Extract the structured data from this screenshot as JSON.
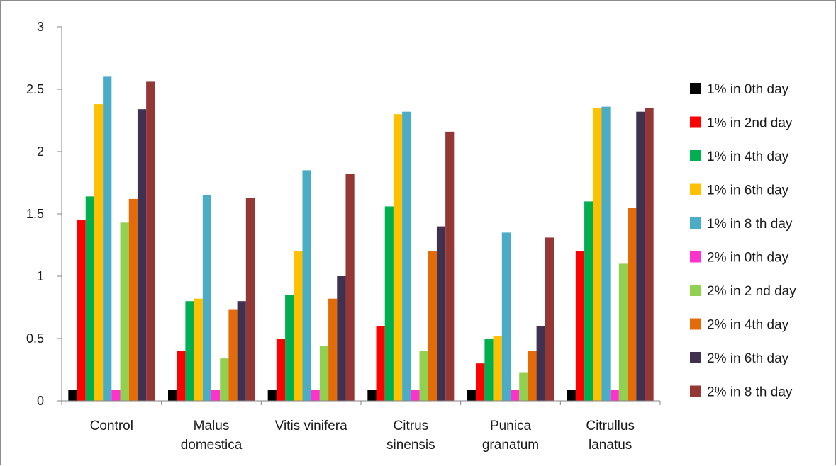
{
  "chart_data": {
    "type": "bar",
    "title": "",
    "xlabel": "",
    "ylabel": "",
    "ylim": [
      0,
      3
    ],
    "yticks": [
      "0",
      "0.5",
      "1",
      "1.5",
      "2",
      "2.5",
      "3"
    ],
    "grid": false,
    "legend_position": "right",
    "categories": [
      [
        "Control"
      ],
      [
        "Malus",
        "domestica"
      ],
      [
        "Vitis vinifera"
      ],
      [
        "Citrus",
        "sinensis"
      ],
      [
        "Punica",
        "granatum"
      ],
      [
        "Citrullus",
        "lanatus"
      ]
    ],
    "series": [
      {
        "name": "1% in 0th day",
        "color": "#000000",
        "values": [
          0.09,
          0.09,
          0.09,
          0.09,
          0.09,
          0.09
        ]
      },
      {
        "name": "1% in 2nd day",
        "color": "#ff0000",
        "values": [
          1.45,
          0.4,
          0.5,
          0.6,
          0.3,
          1.2
        ]
      },
      {
        "name": "1% in 4th day",
        "color": "#00b050",
        "values": [
          1.64,
          0.8,
          0.85,
          1.56,
          0.5,
          1.6
        ]
      },
      {
        "name": "1% in 6th day",
        "color": "#ffc000",
        "values": [
          2.38,
          0.82,
          1.2,
          2.3,
          0.52,
          2.35
        ]
      },
      {
        "name": "1% in 8 th day",
        "color": "#4bacc6",
        "values": [
          2.6,
          1.65,
          1.85,
          2.32,
          1.35,
          2.36
        ]
      },
      {
        "name": "2% in 0th day",
        "color": "#ff33cc",
        "values": [
          0.09,
          0.09,
          0.09,
          0.09,
          0.09,
          0.09
        ]
      },
      {
        "name": "2% in 2 nd day",
        "color": "#92d050",
        "values": [
          1.43,
          0.34,
          0.44,
          0.4,
          0.23,
          1.1
        ]
      },
      {
        "name": "2% in 4th day",
        "color": "#e36c09",
        "values": [
          1.62,
          0.73,
          0.82,
          1.2,
          0.4,
          1.55
        ]
      },
      {
        "name": "2% in 6th day",
        "color": "#403151",
        "values": [
          2.34,
          0.8,
          1.0,
          1.4,
          0.6,
          2.32
        ]
      },
      {
        "name": "2% in 8 th day",
        "color": "#953735",
        "values": [
          2.56,
          1.63,
          1.82,
          2.16,
          1.31,
          2.35
        ]
      }
    ]
  }
}
